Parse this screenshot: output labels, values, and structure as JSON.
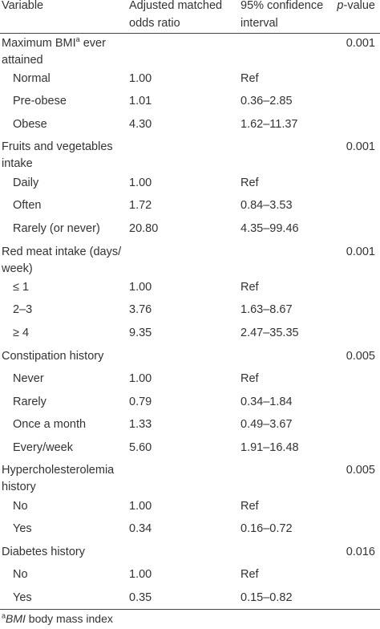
{
  "header": {
    "variable": "Variable",
    "odds_ratio": "Adjusted matched odds ratio",
    "ci": "95% confidence interval",
    "p_value_italic": "p",
    "p_value_rest": "-value"
  },
  "rows": [
    {
      "label": "Maximum BMI",
      "sup": "a",
      "label_rest": " ever attained",
      "or": "",
      "ci": "",
      "p": "0.001",
      "sub": false
    },
    {
      "label": "Normal",
      "or": "1.00",
      "ci": "Ref",
      "p": "",
      "sub": true
    },
    {
      "label": "Pre-obese",
      "or": "1.01",
      "ci": "0.36–2.85",
      "p": "",
      "sub": true
    },
    {
      "label": "Obese",
      "or": "4.30",
      "ci": "1.62–11.37",
      "p": "",
      "sub": true
    },
    {
      "label": "Fruits and vegetables intake",
      "or": "",
      "ci": "",
      "p": "0.001",
      "sub": false
    },
    {
      "label": "Daily",
      "or": "1.00",
      "ci": "Ref",
      "p": "",
      "sub": true
    },
    {
      "label": "Often",
      "or": "1.72",
      "ci": "0.84–3.53",
      "p": "",
      "sub": true
    },
    {
      "label": "Rarely (or never)",
      "or": "20.80",
      "ci": "4.35–99.46",
      "p": "",
      "sub": true
    },
    {
      "label": "Red meat intake (days/ week)",
      "or": "",
      "ci": "",
      "p": "0.001",
      "sub": false
    },
    {
      "label": "≤ 1",
      "or": "1.00",
      "ci": "Ref",
      "p": "",
      "sub": true
    },
    {
      "label": "2–3",
      "or": "3.76",
      "ci": "1.63–8.67",
      "p": "",
      "sub": true
    },
    {
      "label": "≥ 4",
      "or": "9.35",
      "ci": "2.47–35.35",
      "p": "",
      "sub": true
    },
    {
      "label": "Constipation history",
      "or": "",
      "ci": "",
      "p": "0.005",
      "sub": false
    },
    {
      "label": "Never",
      "or": "1.00",
      "ci": "Ref",
      "p": "",
      "sub": true
    },
    {
      "label": "Rarely",
      "or": "0.79",
      "ci": "0.34–1.84",
      "p": "",
      "sub": true
    },
    {
      "label": "Once a month",
      "or": "1.33",
      "ci": "0.49–3.67",
      "p": "",
      "sub": true
    },
    {
      "label": "Every/week",
      "or": "5.60",
      "ci": "1.91–16.48",
      "p": "",
      "sub": true
    },
    {
      "label": "Hypercholesterolemia history",
      "or": "",
      "ci": "",
      "p": "0.005",
      "sub": false
    },
    {
      "label": "No",
      "or": "1.00",
      "ci": "Ref",
      "p": "",
      "sub": true
    },
    {
      "label": "Yes",
      "or": "0.34",
      "ci": "0.16–0.72",
      "p": "",
      "sub": true
    },
    {
      "label": "Diabetes history",
      "or": "",
      "ci": "",
      "p": "0.016",
      "sub": false
    },
    {
      "label": "No",
      "or": "1.00",
      "ci": "Ref",
      "p": "",
      "sub": true
    },
    {
      "label": "Yes",
      "or": "0.35",
      "ci": "0.15–0.82",
      "p": "",
      "sub": true
    }
  ],
  "footnote": {
    "sup": "a",
    "abbr": "BMI",
    "text": " body mass index"
  }
}
